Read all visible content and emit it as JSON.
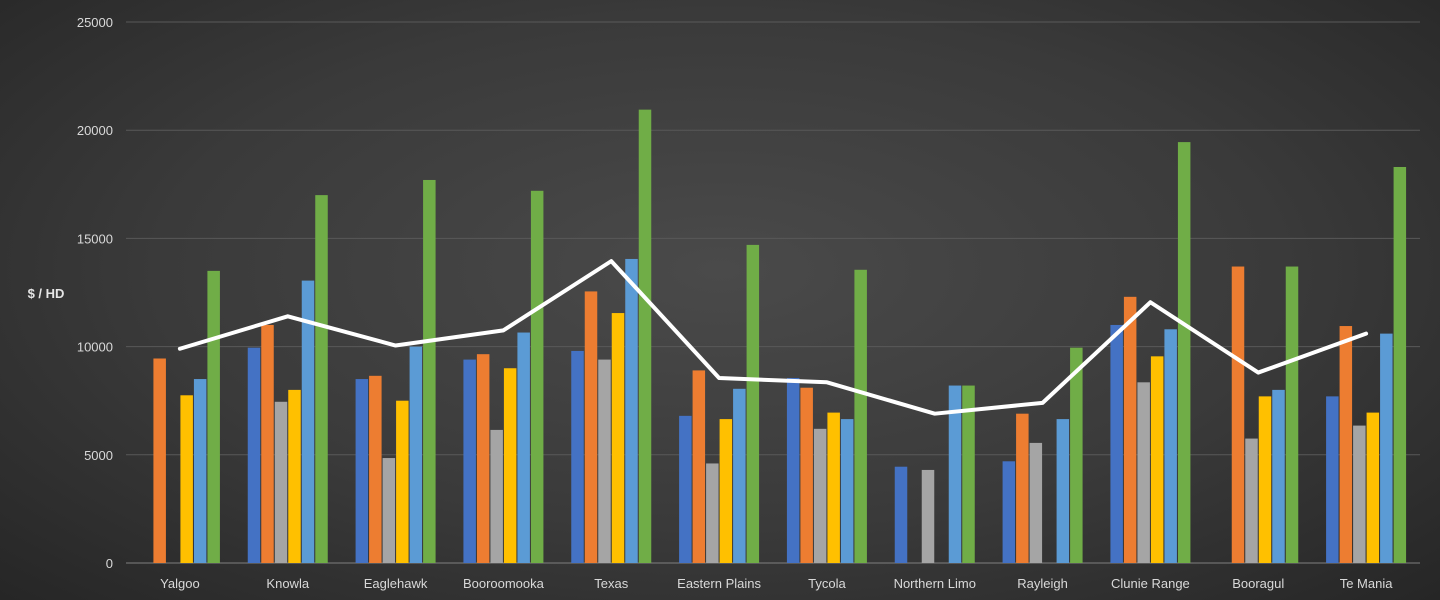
{
  "chart_data": {
    "type": "bar",
    "title": "",
    "xlabel": "",
    "ylabel": "$ / HD",
    "ylim": [
      0,
      25000
    ],
    "yticks": [
      0,
      5000,
      10000,
      15000,
      20000,
      25000
    ],
    "grid": true,
    "legend": "none",
    "categories": [
      "Yalgoo",
      "Knowla",
      "Eaglehawk",
      "Booroomooka",
      "Texas",
      "Eastern Plains",
      "Tycola",
      "Northern Limo",
      "Rayleigh",
      "Clunie Range",
      "Booragul",
      "Te Mania"
    ],
    "series": [
      {
        "color": "#4472c4",
        "values": [
          null,
          9950,
          8500,
          9400,
          9800,
          6800,
          8550,
          4450,
          4700,
          11000,
          null,
          7700
        ]
      },
      {
        "color": "#ed7d31",
        "values": [
          9450,
          11000,
          8650,
          9650,
          12550,
          8900,
          8100,
          null,
          6900,
          12300,
          13700,
          10950
        ]
      },
      {
        "color": "#a5a5a5",
        "values": [
          null,
          7450,
          4850,
          6150,
          9400,
          4600,
          6200,
          4300,
          5550,
          8350,
          5750,
          6350
        ]
      },
      {
        "color": "#ffc000",
        "values": [
          7750,
          8000,
          7500,
          9000,
          11550,
          6650,
          6950,
          null,
          null,
          9550,
          7700,
          6950
        ]
      },
      {
        "color": "#5b9bd5",
        "values": [
          8500,
          13050,
          10000,
          10650,
          14050,
          8050,
          6650,
          8200,
          6650,
          10800,
          8000,
          10600
        ]
      },
      {
        "color": "#70ad47",
        "values": [
          13500,
          17000,
          17700,
          17200,
          20950,
          14700,
          13550,
          8200,
          9950,
          19450,
          13700,
          18300
        ]
      }
    ],
    "line": {
      "type": "line",
      "color": "#ffffff",
      "values": [
        9900,
        11400,
        10050,
        10750,
        13950,
        8550,
        8350,
        6900,
        7400,
        12050,
        8800,
        10600
      ]
    }
  }
}
